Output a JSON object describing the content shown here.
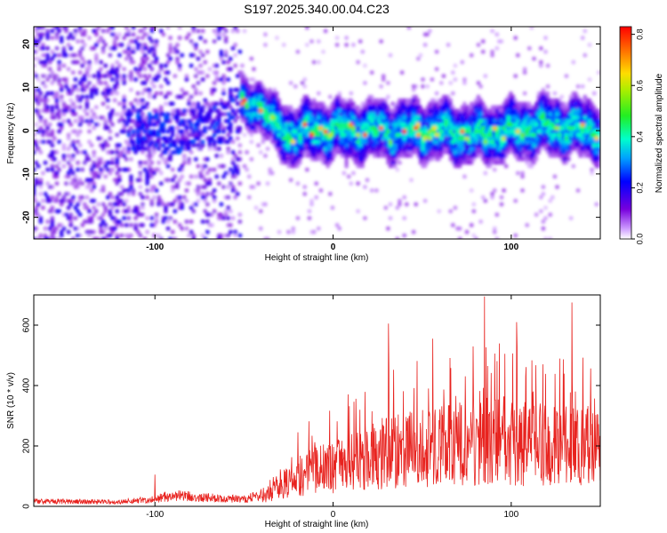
{
  "title": "S197.2025.340.00.04.C23",
  "chart_data": [
    {
      "type": "heatmap",
      "xlabel": "Height of straight line (km)",
      "ylabel": "Frequency (Hz)",
      "xlim": [
        -168,
        150
      ],
      "ylim": [
        -25,
        24
      ],
      "xticks": [
        -100,
        0,
        100
      ],
      "yticks": [
        -20,
        -10,
        0,
        10,
        20
      ],
      "colorbar": {
        "label": "Normalized spectral amplitude",
        "range": [
          0,
          0.83
        ],
        "ticks": [
          "0.0",
          "0.2",
          "0.4",
          "0.6",
          "0.8"
        ],
        "tick_values": [
          0,
          0.2,
          0.4,
          0.6,
          0.8
        ]
      },
      "ridge_track": {
        "x": [
          -168,
          -120,
          -100,
          -80,
          -60,
          -50,
          -40,
          -33,
          -25,
          -10,
          0,
          20,
          40,
          60,
          80,
          100,
          120,
          150
        ],
        "freq_hz": [
          0,
          0,
          -1,
          0,
          2,
          6,
          6,
          1,
          -1,
          0,
          0,
          0,
          0,
          0,
          -1,
          0,
          1,
          0
        ]
      }
    },
    {
      "type": "line",
      "xlabel": "Height of straight line (km)",
      "ylabel": "SNR (10 * v/v)",
      "xlim": [
        -168,
        150
      ],
      "ylim": [
        0,
        700
      ],
      "xticks": [
        -100,
        0,
        100
      ],
      "yticks": [
        0,
        200,
        400,
        600
      ],
      "series": [
        {
          "name": "SNR",
          "color": "#e8231f",
          "envelope_x": [
            -168,
            -120,
            -100,
            -90,
            -70,
            -50,
            -40,
            -30,
            -20,
            0,
            30,
            60,
            90,
            120,
            150
          ],
          "envelope_y": [
            18,
            15,
            25,
            40,
            30,
            25,
            40,
            90,
            130,
            170,
            230,
            250,
            280,
            260,
            250
          ],
          "peaks": [
            {
              "x": -100,
              "y": 105
            },
            {
              "x": 31,
              "y": 605
            },
            {
              "x": 56,
              "y": 555
            },
            {
              "x": 85,
              "y": 695
            },
            {
              "x": 103,
              "y": 610
            },
            {
              "x": 134,
              "y": 675
            }
          ]
        }
      ]
    }
  ]
}
